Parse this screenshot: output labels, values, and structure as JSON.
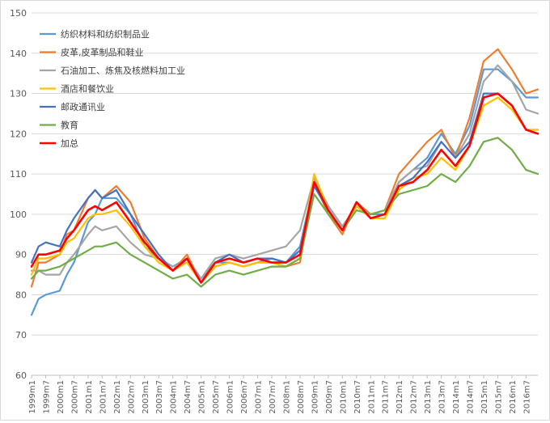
{
  "chart_data": {
    "type": "line",
    "ylim": [
      60,
      150
    ],
    "y_ticks": [
      60,
      70,
      80,
      90,
      100,
      110,
      120,
      130,
      140,
      150
    ],
    "x_labels": [
      "1999m1",
      "1999m7",
      "2000m1",
      "2000m7",
      "2001m1",
      "2001m7",
      "2002m1",
      "2002m7",
      "2003m1",
      "2003m7",
      "2004m1",
      "2004m7",
      "2005m1",
      "2005m7",
      "2006m1",
      "2006m7",
      "2007m1",
      "2007m7",
      "2008m1",
      "2008m7",
      "2009m1",
      "2009m7",
      "2010m1",
      "2010m7",
      "2011m1",
      "2011m7",
      "2012m1",
      "2012m7",
      "2013m1",
      "2013m7",
      "2014m1",
      "2014m7",
      "2015m1",
      "2015m7",
      "2016m1",
      "2016m7"
    ],
    "grid": "horizontal",
    "legend_position": "top-left",
    "series": [
      {
        "name": "纺织材料和纺织制品业",
        "color": "#5b9bd5",
        "points": [
          [
            "1999m1",
            75
          ],
          [
            "1999m4",
            79
          ],
          [
            "1999m7",
            80
          ],
          [
            "2000m1",
            81
          ],
          [
            "2000m4",
            85
          ],
          [
            "2000m7",
            88
          ],
          [
            "2001m1",
            98
          ],
          [
            "2001m4",
            100
          ],
          [
            "2001m7",
            104
          ],
          [
            "2002m1",
            104
          ],
          [
            "2002m7",
            100
          ],
          [
            "2003m1",
            92
          ],
          [
            "2003m7",
            89
          ],
          [
            "2004m1",
            87
          ],
          [
            "2004m7",
            89
          ],
          [
            "2005m1",
            84
          ],
          [
            "2005m7",
            88
          ],
          [
            "2006m1",
            88
          ],
          [
            "2006m7",
            87
          ],
          [
            "2007m1",
            88
          ],
          [
            "2007m7",
            89
          ],
          [
            "2008m1",
            88
          ],
          [
            "2008m7",
            92
          ],
          [
            "2009m1",
            108
          ],
          [
            "2009m7",
            102
          ],
          [
            "2010m1",
            97
          ],
          [
            "2010m7",
            102
          ],
          [
            "2011m1",
            100
          ],
          [
            "2011m7",
            100
          ],
          [
            "2012m1",
            108
          ],
          [
            "2012m7",
            111
          ],
          [
            "2013m1",
            114
          ],
          [
            "2013m7",
            120
          ],
          [
            "2014m1",
            115
          ],
          [
            "2014m7",
            122
          ],
          [
            "2015m1",
            136
          ],
          [
            "2015m7",
            136
          ],
          [
            "2016m1",
            133
          ],
          [
            "2016m7",
            129
          ],
          [
            "2016m12",
            129
          ]
        ]
      },
      {
        "name": "皮革,皮革制品和鞋业",
        "color": "#ed7d31",
        "points": [
          [
            "1999m1",
            82
          ],
          [
            "1999m4",
            88
          ],
          [
            "1999m7",
            88
          ],
          [
            "2000m1",
            90
          ],
          [
            "2000m4",
            95
          ],
          [
            "2000m7",
            96
          ],
          [
            "2001m1",
            104
          ],
          [
            "2001m4",
            106
          ],
          [
            "2001m7",
            104
          ],
          [
            "2002m1",
            107
          ],
          [
            "2002m7",
            103
          ],
          [
            "2003m1",
            94
          ],
          [
            "2003m7",
            89
          ],
          [
            "2004m1",
            86
          ],
          [
            "2004m7",
            90
          ],
          [
            "2005m1",
            83
          ],
          [
            "2005m7",
            87
          ],
          [
            "2006m1",
            88
          ],
          [
            "2006m7",
            87
          ],
          [
            "2007m1",
            88
          ],
          [
            "2007m7",
            88
          ],
          [
            "2008m1",
            87
          ],
          [
            "2008m7",
            88
          ],
          [
            "2009m1",
            108
          ],
          [
            "2009m7",
            100
          ],
          [
            "2010m1",
            95
          ],
          [
            "2010m7",
            103
          ],
          [
            "2011m1",
            100
          ],
          [
            "2011m7",
            101
          ],
          [
            "2012m1",
            110
          ],
          [
            "2012m7",
            114
          ],
          [
            "2013m1",
            118
          ],
          [
            "2013m7",
            121
          ],
          [
            "2014m1",
            114
          ],
          [
            "2014m7",
            124
          ],
          [
            "2015m1",
            138
          ],
          [
            "2015m7",
            141
          ],
          [
            "2016m1",
            136
          ],
          [
            "2016m7",
            130
          ],
          [
            "2016m12",
            131
          ]
        ]
      },
      {
        "name": "石油加工、炼焦及核燃料加工业",
        "color": "#a5a5a5",
        "points": [
          [
            "1999m1",
            86
          ],
          [
            "1999m4",
            86
          ],
          [
            "1999m7",
            85
          ],
          [
            "2000m1",
            85
          ],
          [
            "2000m4",
            88
          ],
          [
            "2000m7",
            90
          ],
          [
            "2001m1",
            95
          ],
          [
            "2001m4",
            97
          ],
          [
            "2001m7",
            96
          ],
          [
            "2002m1",
            97
          ],
          [
            "2002m7",
            93
          ],
          [
            "2003m1",
            90
          ],
          [
            "2003m7",
            89
          ],
          [
            "2004m1",
            87
          ],
          [
            "2004m7",
            88
          ],
          [
            "2005m1",
            84
          ],
          [
            "2005m7",
            89
          ],
          [
            "2006m1",
            90
          ],
          [
            "2006m7",
            89
          ],
          [
            "2007m1",
            90
          ],
          [
            "2007m7",
            91
          ],
          [
            "2008m1",
            92
          ],
          [
            "2008m7",
            96
          ],
          [
            "2009m1",
            109
          ],
          [
            "2009m7",
            102
          ],
          [
            "2010m1",
            97
          ],
          [
            "2010m7",
            102
          ],
          [
            "2011m1",
            100
          ],
          [
            "2011m7",
            101
          ],
          [
            "2012m1",
            108
          ],
          [
            "2012m7",
            111
          ],
          [
            "2013m1",
            112
          ],
          [
            "2013m7",
            118
          ],
          [
            "2014m1",
            114
          ],
          [
            "2014m7",
            120
          ],
          [
            "2015m1",
            133
          ],
          [
            "2015m7",
            137
          ],
          [
            "2016m1",
            133
          ],
          [
            "2016m7",
            126
          ],
          [
            "2016m12",
            125
          ]
        ]
      },
      {
        "name": "酒店和餐饮业",
        "color": "#ffc000",
        "points": [
          [
            "1999m1",
            85
          ],
          [
            "1999m4",
            89
          ],
          [
            "1999m7",
            89
          ],
          [
            "2000m1",
            90
          ],
          [
            "2000m4",
            93
          ],
          [
            "2000m7",
            94
          ],
          [
            "2001m1",
            99
          ],
          [
            "2001m4",
            100
          ],
          [
            "2001m7",
            100
          ],
          [
            "2002m1",
            101
          ],
          [
            "2002m7",
            97
          ],
          [
            "2003m1",
            92
          ],
          [
            "2003m7",
            88
          ],
          [
            "2004m1",
            86
          ],
          [
            "2004m7",
            88
          ],
          [
            "2005m1",
            83
          ],
          [
            "2005m7",
            87
          ],
          [
            "2006m1",
            88
          ],
          [
            "2006m7",
            87
          ],
          [
            "2007m1",
            88
          ],
          [
            "2007m7",
            88
          ],
          [
            "2008m1",
            87
          ],
          [
            "2008m7",
            89
          ],
          [
            "2009m1",
            110
          ],
          [
            "2009m7",
            101
          ],
          [
            "2010m1",
            96
          ],
          [
            "2010m7",
            102
          ],
          [
            "2011m1",
            99
          ],
          [
            "2011m7",
            99
          ],
          [
            "2012m1",
            106
          ],
          [
            "2012m7",
            109
          ],
          [
            "2013m1",
            110
          ],
          [
            "2013m7",
            114
          ],
          [
            "2014m1",
            111
          ],
          [
            "2014m7",
            117
          ],
          [
            "2015m1",
            127
          ],
          [
            "2015m7",
            129
          ],
          [
            "2016m1",
            126
          ],
          [
            "2016m7",
            121
          ],
          [
            "2016m12",
            121
          ]
        ]
      },
      {
        "name": "邮政通讯业",
        "color": "#4472c4",
        "points": [
          [
            "1999m1",
            88
          ],
          [
            "1999m4",
            92
          ],
          [
            "1999m7",
            93
          ],
          [
            "2000m1",
            92
          ],
          [
            "2000m4",
            96
          ],
          [
            "2000m7",
            99
          ],
          [
            "2001m1",
            104
          ],
          [
            "2001m4",
            106
          ],
          [
            "2001m7",
            104
          ],
          [
            "2002m1",
            106
          ],
          [
            "2002m7",
            100
          ],
          [
            "2003m1",
            95
          ],
          [
            "2003m7",
            90
          ],
          [
            "2004m1",
            86
          ],
          [
            "2004m7",
            89
          ],
          [
            "2005m1",
            83
          ],
          [
            "2005m7",
            88
          ],
          [
            "2006m1",
            90
          ],
          [
            "2006m7",
            88
          ],
          [
            "2007m1",
            89
          ],
          [
            "2007m7",
            89
          ],
          [
            "2008m1",
            88
          ],
          [
            "2008m7",
            91
          ],
          [
            "2009m1",
            107
          ],
          [
            "2009m7",
            101
          ],
          [
            "2010m1",
            96
          ],
          [
            "2010m7",
            103
          ],
          [
            "2011m1",
            99
          ],
          [
            "2011m7",
            100
          ],
          [
            "2012m1",
            107
          ],
          [
            "2012m7",
            109
          ],
          [
            "2013m1",
            113
          ],
          [
            "2013m7",
            118
          ],
          [
            "2014m1",
            114
          ],
          [
            "2014m7",
            118
          ],
          [
            "2015m1",
            130
          ],
          [
            "2015m7",
            130
          ],
          [
            "2016m1",
            127
          ],
          [
            "2016m7",
            121
          ],
          [
            "2016m12",
            120
          ]
        ]
      },
      {
        "name": "教育",
        "color": "#70ad47",
        "points": [
          [
            "1999m1",
            84
          ],
          [
            "1999m4",
            86
          ],
          [
            "1999m7",
            86
          ],
          [
            "2000m1",
            87
          ],
          [
            "2000m4",
            88
          ],
          [
            "2000m7",
            89
          ],
          [
            "2001m1",
            91
          ],
          [
            "2001m4",
            92
          ],
          [
            "2001m7",
            92
          ],
          [
            "2002m1",
            93
          ],
          [
            "2002m7",
            90
          ],
          [
            "2003m1",
            88
          ],
          [
            "2003m7",
            86
          ],
          [
            "2004m1",
            84
          ],
          [
            "2004m7",
            85
          ],
          [
            "2005m1",
            82
          ],
          [
            "2005m7",
            85
          ],
          [
            "2006m1",
            86
          ],
          [
            "2006m7",
            85
          ],
          [
            "2007m1",
            86
          ],
          [
            "2007m7",
            87
          ],
          [
            "2008m1",
            87
          ],
          [
            "2008m7",
            89
          ],
          [
            "2009m1",
            105
          ],
          [
            "2009m7",
            100
          ],
          [
            "2010m1",
            96
          ],
          [
            "2010m7",
            101
          ],
          [
            "2011m1",
            100
          ],
          [
            "2011m7",
            101
          ],
          [
            "2012m1",
            105
          ],
          [
            "2012m7",
            106
          ],
          [
            "2013m1",
            107
          ],
          [
            "2013m7",
            110
          ],
          [
            "2014m1",
            108
          ],
          [
            "2014m7",
            112
          ],
          [
            "2015m1",
            118
          ],
          [
            "2015m7",
            119
          ],
          [
            "2016m1",
            116
          ],
          [
            "2016m7",
            111
          ],
          [
            "2016m12",
            110
          ]
        ]
      },
      {
        "name": "加总",
        "color": "#ff0000",
        "points": [
          [
            "1999m1",
            87
          ],
          [
            "1999m4",
            90
          ],
          [
            "1999m7",
            90
          ],
          [
            "2000m1",
            91
          ],
          [
            "2000m4",
            94
          ],
          [
            "2000m7",
            96
          ],
          [
            "2001m1",
            101
          ],
          [
            "2001m4",
            102
          ],
          [
            "2001m7",
            101
          ],
          [
            "2002m1",
            103
          ],
          [
            "2002m7",
            98
          ],
          [
            "2003m1",
            93
          ],
          [
            "2003m7",
            89
          ],
          [
            "2004m1",
            86
          ],
          [
            "2004m7",
            89
          ],
          [
            "2005m1",
            83
          ],
          [
            "2005m7",
            88
          ],
          [
            "2006m1",
            89
          ],
          [
            "2006m7",
            88
          ],
          [
            "2007m1",
            89
          ],
          [
            "2007m7",
            88
          ],
          [
            "2008m1",
            88
          ],
          [
            "2008m7",
            90
          ],
          [
            "2009m1",
            108
          ],
          [
            "2009m7",
            101
          ],
          [
            "2010m1",
            96
          ],
          [
            "2010m7",
            103
          ],
          [
            "2011m1",
            99
          ],
          [
            "2011m7",
            100
          ],
          [
            "2012m1",
            107
          ],
          [
            "2012m7",
            108
          ],
          [
            "2013m1",
            111
          ],
          [
            "2013m7",
            116
          ],
          [
            "2014m1",
            112
          ],
          [
            "2014m7",
            117
          ],
          [
            "2015m1",
            129
          ],
          [
            "2015m7",
            130
          ],
          [
            "2016m1",
            127
          ],
          [
            "2016m7",
            121
          ],
          [
            "2016m12",
            120
          ]
        ]
      }
    ]
  }
}
